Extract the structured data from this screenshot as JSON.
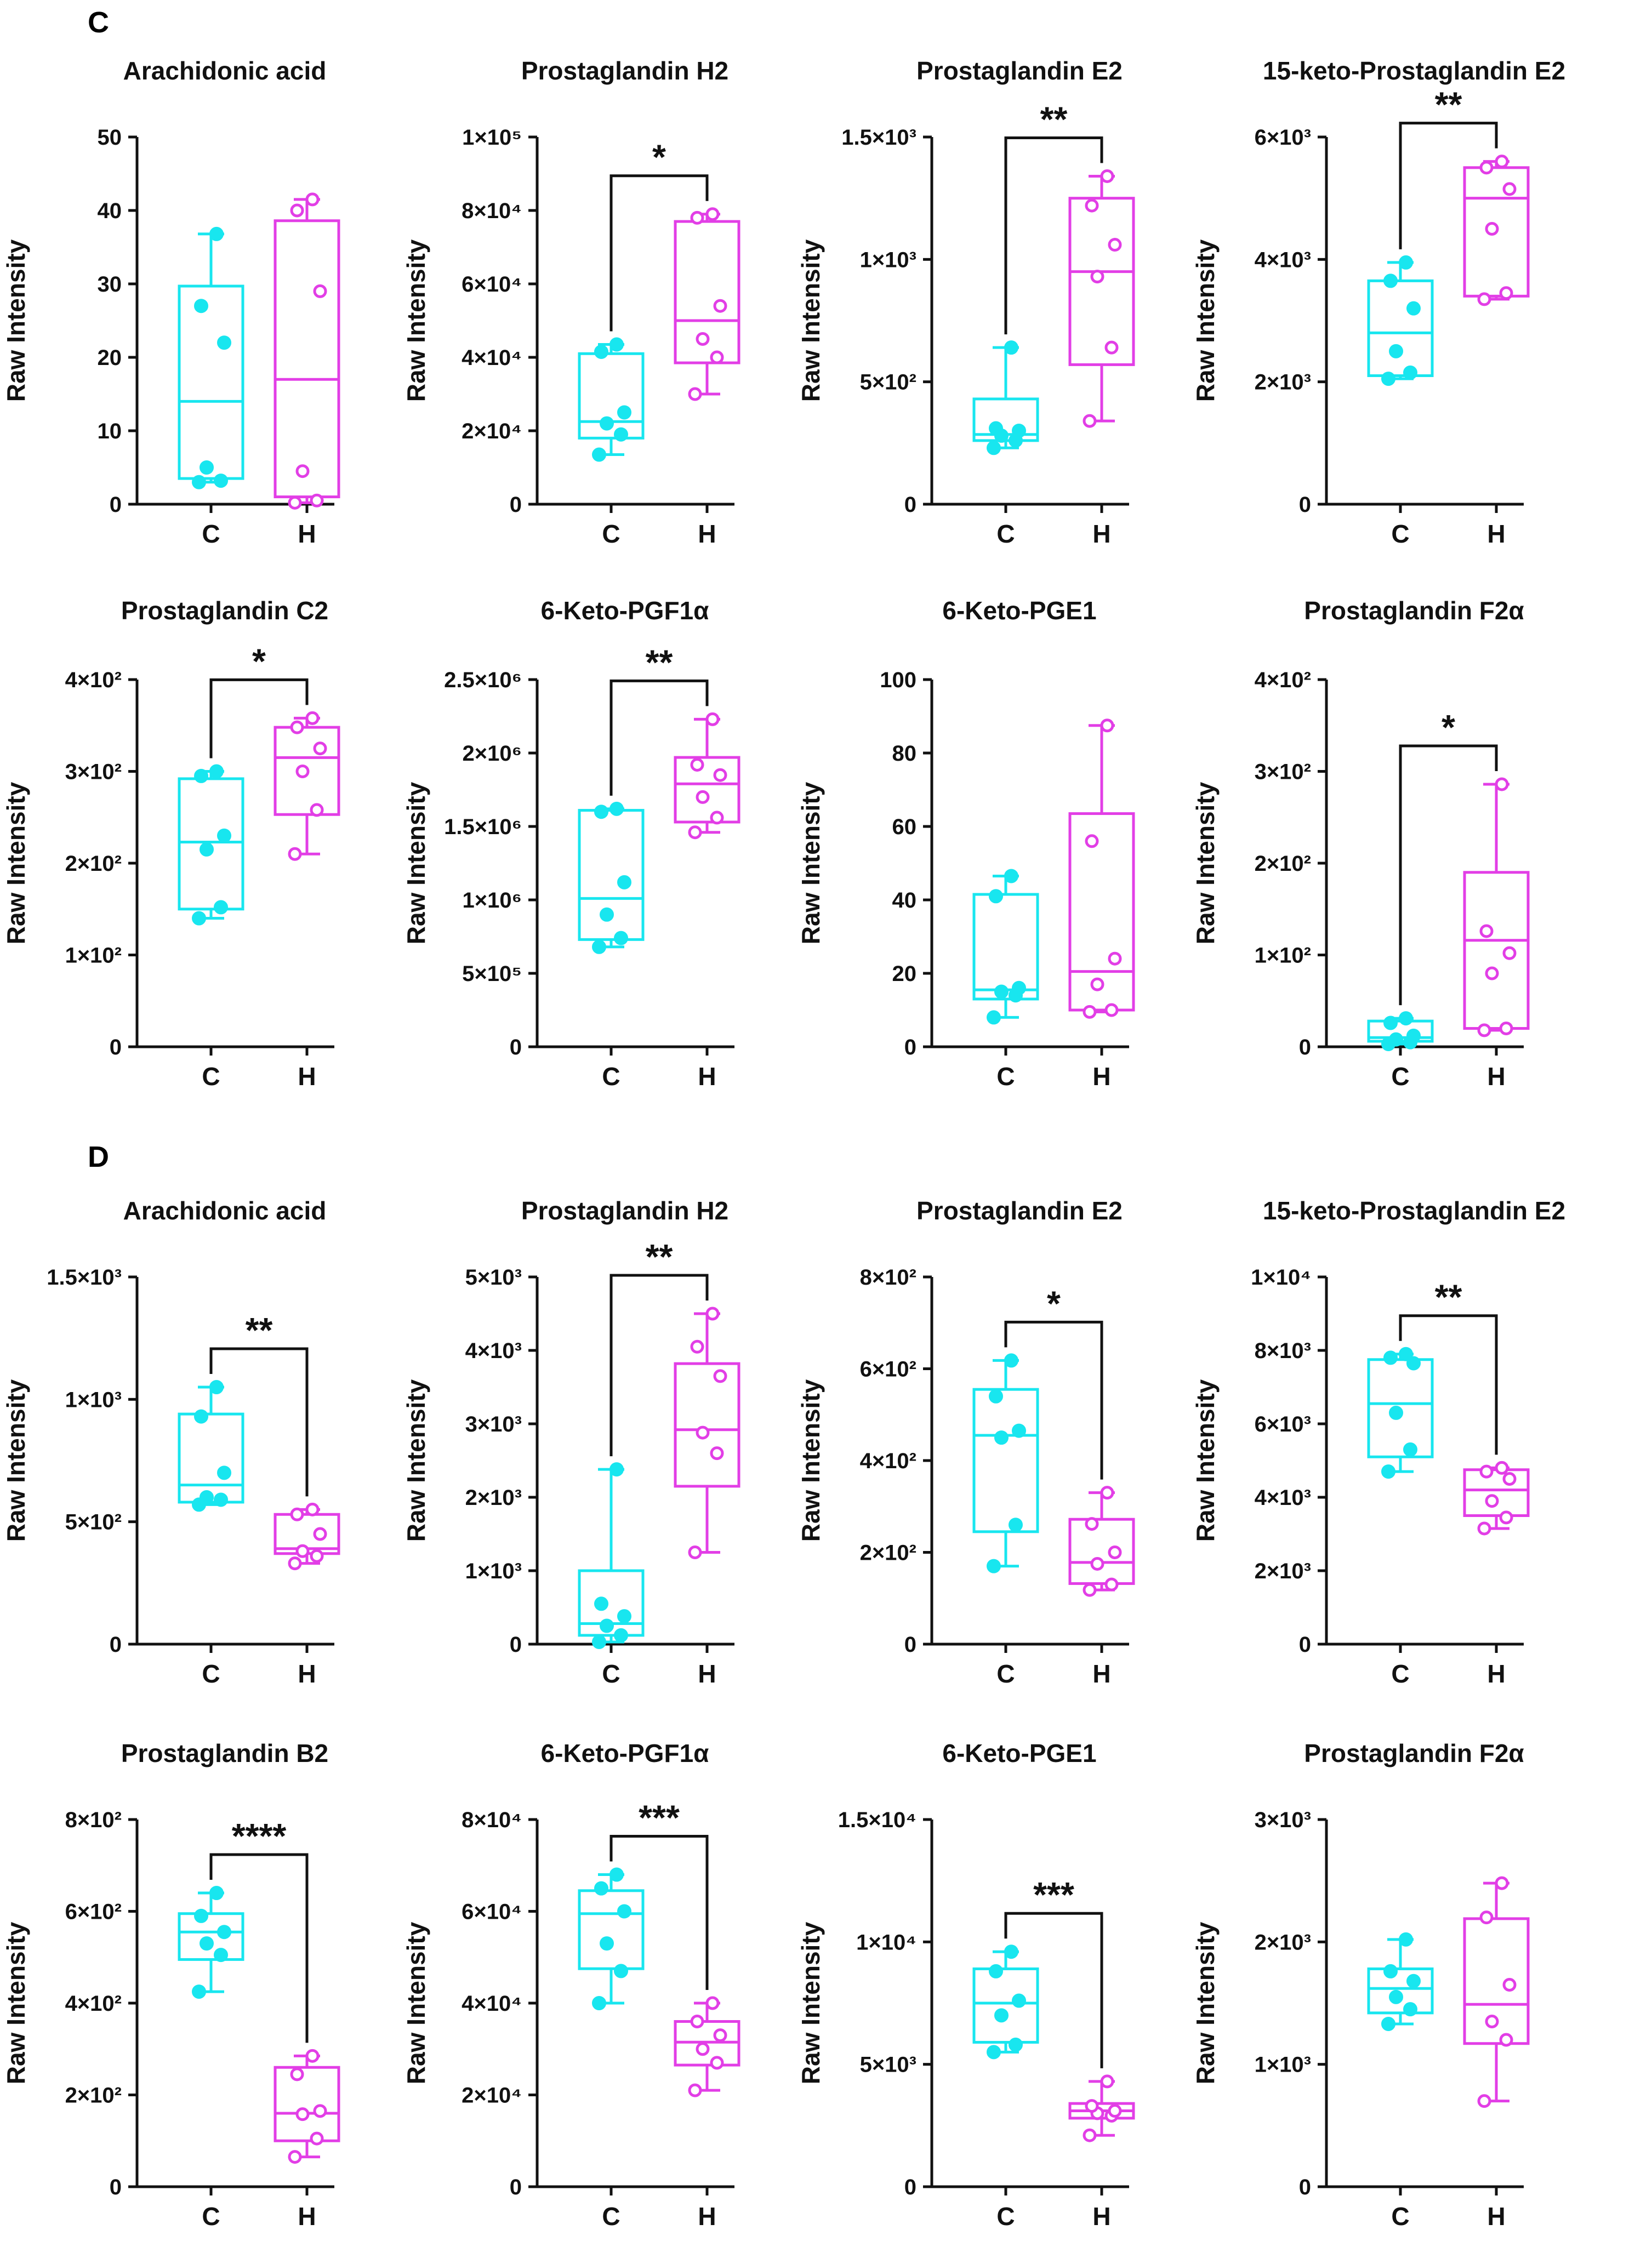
{
  "panels": [
    {
      "label": "C"
    },
    {
      "label": "D"
    }
  ],
  "colors": {
    "control": "#18e6ef",
    "treated": "#e23ee6",
    "axis": "#111111"
  },
  "chart_data": [
    {
      "panel": "C",
      "type": "box",
      "title": "Arachidonic acid",
      "ylabel": "Raw Intensity",
      "categories": [
        "C",
        "H"
      ],
      "ylim": [
        0,
        50
      ],
      "yticks": [
        0,
        10,
        20,
        30,
        40,
        50
      ],
      "ytick_labels": [
        "0",
        "10",
        "20",
        "30",
        "40",
        "50"
      ],
      "boxes": [
        {
          "group": "C",
          "min": 3,
          "q1": 3.5,
          "median": 14,
          "q3": 29.7,
          "max": 36.8,
          "points": [
            3,
            3.2,
            5,
            22,
            27,
            36.8
          ],
          "filled": true
        },
        {
          "group": "H",
          "min": 0.2,
          "q1": 1,
          "median": 17,
          "q3": 38.6,
          "max": 41.5,
          "points": [
            0.2,
            0.5,
            4.5,
            29,
            40,
            41.5
          ],
          "filled": false
        }
      ],
      "significance": ""
    },
    {
      "panel": "C",
      "type": "box",
      "title": "Prostaglandin H2",
      "ylabel": "Raw Intensity",
      "categories": [
        "C",
        "H"
      ],
      "ylim": [
        0,
        100000
      ],
      "yticks": [
        0,
        20000,
        40000,
        60000,
        80000,
        100000
      ],
      "ytick_labels": [
        "0",
        "2×10⁴",
        "4×10⁴",
        "6×10⁴",
        "8×10⁴",
        "1×10⁵"
      ],
      "boxes": [
        {
          "group": "C",
          "min": 13500,
          "q1": 18000,
          "median": 22500,
          "q3": 41000,
          "max": 43500,
          "points": [
            13500,
            19000,
            22000,
            25000,
            41500,
            43500
          ],
          "filled": true
        },
        {
          "group": "H",
          "min": 30000,
          "q1": 38500,
          "median": 50000,
          "q3": 77000,
          "max": 79000,
          "points": [
            30000,
            40000,
            45000,
            54000,
            78000,
            79000
          ],
          "filled": false
        }
      ],
      "significance": "*"
    },
    {
      "panel": "C",
      "type": "box",
      "title": "Prostaglandin E2",
      "ylabel": "Raw Intensity",
      "categories": [
        "C",
        "H"
      ],
      "ylim": [
        0,
        1500
      ],
      "yticks": [
        0,
        500,
        1000,
        1500
      ],
      "ytick_labels": [
        "0",
        "5×10²",
        "1×10³",
        "1.5×10³"
      ],
      "boxes": [
        {
          "group": "C",
          "min": 230,
          "q1": 260,
          "median": 285,
          "q3": 430,
          "max": 640,
          "points": [
            230,
            260,
            280,
            300,
            310,
            640
          ],
          "filled": true
        },
        {
          "group": "H",
          "min": 340,
          "q1": 570,
          "median": 950,
          "q3": 1250,
          "max": 1340,
          "points": [
            340,
            640,
            930,
            1060,
            1220,
            1340
          ],
          "filled": false
        }
      ],
      "significance": "**"
    },
    {
      "panel": "C",
      "type": "box",
      "title": "15-keto-Prostaglandin E2",
      "ylabel": "Raw Intensity",
      "categories": [
        "C",
        "H"
      ],
      "ylim": [
        0,
        6000
      ],
      "yticks": [
        0,
        2000,
        4000,
        6000
      ],
      "ytick_labels": [
        "0",
        "2×10³",
        "4×10³",
        "6×10³"
      ],
      "boxes": [
        {
          "group": "C",
          "min": 2050,
          "q1": 2100,
          "median": 2800,
          "q3": 3650,
          "max": 3950,
          "points": [
            2050,
            2150,
            2500,
            3200,
            3650,
            3950
          ],
          "filled": true
        },
        {
          "group": "H",
          "min": 3350,
          "q1": 3400,
          "median": 5000,
          "q3": 5500,
          "max": 5600,
          "points": [
            3350,
            3450,
            4500,
            5150,
            5500,
            5600
          ],
          "filled": false
        }
      ],
      "significance": "**"
    },
    {
      "panel": "C",
      "type": "box",
      "title": "Prostaglandin C2",
      "ylabel": "Raw Intensity",
      "categories": [
        "C",
        "H"
      ],
      "ylim": [
        0,
        400
      ],
      "yticks": [
        0,
        100,
        200,
        300,
        400
      ],
      "ytick_labels": [
        "0",
        "1×10²",
        "2×10²",
        "3×10²",
        "4×10²"
      ],
      "boxes": [
        {
          "group": "C",
          "min": 140,
          "q1": 150,
          "median": 223,
          "q3": 292,
          "max": 300,
          "points": [
            140,
            152,
            215,
            230,
            295,
            300
          ],
          "filled": true
        },
        {
          "group": "H",
          "min": 210,
          "q1": 253,
          "median": 315,
          "q3": 348,
          "max": 358,
          "points": [
            210,
            258,
            300,
            325,
            348,
            358
          ],
          "filled": false
        }
      ],
      "significance": "*"
    },
    {
      "panel": "C",
      "type": "box",
      "title": "6-Keto-PGF1α",
      "ylabel": "Raw Intensity",
      "categories": [
        "C",
        "H"
      ],
      "ylim": [
        0,
        2500000
      ],
      "yticks": [
        0,
        500000,
        1000000,
        1500000,
        2000000,
        2500000
      ],
      "ytick_labels": [
        "0",
        "5×10⁵",
        "1×10⁶",
        "1.5×10⁶",
        "2×10⁶",
        "2.5×10⁶"
      ],
      "boxes": [
        {
          "group": "C",
          "min": 680000,
          "q1": 730000,
          "median": 1010000,
          "q3": 1610000,
          "max": 1620000,
          "points": [
            680000,
            740000,
            900000,
            1120000,
            1600000,
            1620000
          ],
          "filled": true
        },
        {
          "group": "H",
          "min": 1460000,
          "q1": 1530000,
          "median": 1790000,
          "q3": 1970000,
          "max": 2230000,
          "points": [
            1460000,
            1560000,
            1700000,
            1850000,
            1920000,
            2230000
          ],
          "filled": false
        }
      ],
      "significance": "**"
    },
    {
      "panel": "C",
      "type": "box",
      "title": "6-Keto-PGE1",
      "ylabel": "Raw Intensity",
      "categories": [
        "C",
        "H"
      ],
      "ylim": [
        0,
        100
      ],
      "yticks": [
        0,
        20,
        40,
        60,
        80,
        100
      ],
      "ytick_labels": [
        "0",
        "20",
        "40",
        "60",
        "80",
        "100"
      ],
      "boxes": [
        {
          "group": "C",
          "min": 8,
          "q1": 13,
          "median": 15.5,
          "q3": 41.5,
          "max": 46.5,
          "points": [
            8,
            14,
            15,
            16,
            41,
            46.5
          ],
          "filled": true
        },
        {
          "group": "H",
          "min": 9.5,
          "q1": 10,
          "median": 20.5,
          "q3": 63.5,
          "max": 87.5,
          "points": [
            9.5,
            10,
            17,
            24,
            56,
            87.5
          ],
          "filled": false
        }
      ],
      "significance": ""
    },
    {
      "panel": "C",
      "type": "box",
      "title": "Prostaglandin F2α",
      "ylabel": "Raw Intensity",
      "categories": [
        "C",
        "H"
      ],
      "ylim": [
        0,
        400
      ],
      "yticks": [
        0,
        100,
        200,
        300,
        400
      ],
      "ytick_labels": [
        "0",
        "1×10²",
        "2×10²",
        "3×10²",
        "4×10²"
      ],
      "boxes": [
        {
          "group": "C",
          "min": 3,
          "q1": 6,
          "median": 10,
          "q3": 28,
          "max": 31,
          "points": [
            3,
            5,
            8,
            12,
            26,
            31
          ],
          "filled": true
        },
        {
          "group": "H",
          "min": 18,
          "q1": 20,
          "median": 116,
          "q3": 190,
          "max": 286,
          "points": [
            18,
            20,
            80,
            102,
            126,
            286
          ],
          "filled": false
        }
      ],
      "significance": "*"
    },
    {
      "panel": "D",
      "type": "box",
      "title": "Arachidonic acid",
      "ylabel": "Raw Intensity",
      "categories": [
        "C",
        "H"
      ],
      "ylim": [
        0,
        1500
      ],
      "yticks": [
        0,
        500,
        1000,
        1500
      ],
      "ytick_labels": [
        "0",
        "5×10²",
        "1×10³",
        "1.5×10³"
      ],
      "boxes": [
        {
          "group": "C",
          "min": 570,
          "q1": 580,
          "median": 650,
          "q3": 940,
          "max": 1050,
          "points": [
            570,
            590,
            600,
            700,
            930,
            1050
          ],
          "filled": true
        },
        {
          "group": "H",
          "min": 330,
          "q1": 370,
          "median": 390,
          "q3": 530,
          "max": 550,
          "points": [
            330,
            360,
            380,
            450,
            530,
            550
          ],
          "filled": false
        }
      ],
      "significance": "**"
    },
    {
      "panel": "D",
      "type": "box",
      "title": "Prostaglandin H2",
      "ylabel": "Raw Intensity",
      "categories": [
        "C",
        "H"
      ],
      "ylim": [
        0,
        5000
      ],
      "yticks": [
        0,
        1000,
        2000,
        3000,
        4000,
        5000
      ],
      "ytick_labels": [
        "0",
        "1×10³",
        "2×10³",
        "3×10³",
        "4×10³",
        "5×10³"
      ],
      "boxes": [
        {
          "group": "C",
          "min": 30,
          "q1": 120,
          "median": 280,
          "q3": 1000,
          "max": 2380,
          "points": [
            30,
            120,
            250,
            380,
            550,
            2380
          ],
          "filled": true
        },
        {
          "group": "H",
          "min": 1250,
          "q1": 2150,
          "median": 2920,
          "q3": 3820,
          "max": 4500,
          "points": [
            1250,
            2600,
            2880,
            3650,
            4050,
            4500
          ],
          "filled": false
        }
      ],
      "significance": "**"
    },
    {
      "panel": "D",
      "type": "box",
      "title": "Prostaglandin E2",
      "ylabel": "Raw Intensity",
      "categories": [
        "C",
        "H"
      ],
      "ylim": [
        0,
        800
      ],
      "yticks": [
        0,
        200,
        400,
        600,
        800
      ],
      "ytick_labels": [
        "0",
        "2×10²",
        "4×10²",
        "6×10²",
        "8×10²"
      ],
      "boxes": [
        {
          "group": "C",
          "min": 170,
          "q1": 245,
          "median": 455,
          "q3": 555,
          "max": 618,
          "points": [
            170,
            260,
            450,
            465,
            540,
            618
          ],
          "filled": true
        },
        {
          "group": "H",
          "min": 118,
          "q1": 132,
          "median": 178,
          "q3": 272,
          "max": 330,
          "points": [
            118,
            130,
            175,
            200,
            262,
            330
          ],
          "filled": false
        }
      ],
      "significance": "*"
    },
    {
      "panel": "D",
      "type": "box",
      "title": "15-keto-Prostaglandin E2",
      "ylabel": "Raw Intensity",
      "categories": [
        "C",
        "H"
      ],
      "ylim": [
        0,
        10000
      ],
      "yticks": [
        0,
        2000,
        4000,
        6000,
        8000,
        10000
      ],
      "ytick_labels": [
        "0",
        "2×10³",
        "4×10³",
        "6×10³",
        "8×10³",
        "1×10⁴"
      ],
      "boxes": [
        {
          "group": "C",
          "min": 4700,
          "q1": 5100,
          "median": 6550,
          "q3": 7750,
          "max": 7900,
          "points": [
            4700,
            5300,
            6300,
            7650,
            7800,
            7900
          ],
          "filled": true
        },
        {
          "group": "H",
          "min": 3150,
          "q1": 3500,
          "median": 4200,
          "q3": 4750,
          "max": 4800,
          "points": [
            3150,
            3450,
            3900,
            4500,
            4700,
            4800
          ],
          "filled": false
        }
      ],
      "significance": "**"
    },
    {
      "panel": "D",
      "type": "box",
      "title": "Prostaglandin B2",
      "ylabel": "Raw Intensity",
      "categories": [
        "C",
        "H"
      ],
      "ylim": [
        0,
        800
      ],
      "yticks": [
        0,
        200,
        400,
        600,
        800
      ],
      "ytick_labels": [
        "0",
        "2×10²",
        "4×10²",
        "6×10²",
        "8×10²"
      ],
      "boxes": [
        {
          "group": "C",
          "min": 425,
          "q1": 495,
          "median": 555,
          "q3": 595,
          "max": 640,
          "points": [
            425,
            505,
            530,
            555,
            590,
            640
          ],
          "filled": true
        },
        {
          "group": "H",
          "min": 65,
          "q1": 100,
          "median": 160,
          "q3": 260,
          "max": 285,
          "points": [
            65,
            105,
            158,
            165,
            245,
            285
          ],
          "filled": false
        }
      ],
      "significance": "****"
    },
    {
      "panel": "D",
      "type": "box",
      "title": "6-Keto-PGF1α",
      "ylabel": "Raw Intensity",
      "categories": [
        "C",
        "H"
      ],
      "ylim": [
        0,
        80000
      ],
      "yticks": [
        0,
        20000,
        40000,
        60000,
        80000
      ],
      "ytick_labels": [
        "0",
        "2×10⁴",
        "4×10⁴",
        "6×10⁴",
        "8×10⁴"
      ],
      "boxes": [
        {
          "group": "C",
          "min": 40000,
          "q1": 47500,
          "median": 59500,
          "q3": 64500,
          "max": 68000,
          "points": [
            40000,
            47000,
            53000,
            60000,
            65000,
            68000
          ],
          "filled": true
        },
        {
          "group": "H",
          "min": 21000,
          "q1": 26500,
          "median": 31500,
          "q3": 36000,
          "max": 40000,
          "points": [
            21000,
            27000,
            30000,
            33000,
            36000,
            40000
          ],
          "filled": false
        }
      ],
      "significance": "***"
    },
    {
      "panel": "D",
      "type": "box",
      "title": "6-Keto-PGE1",
      "ylabel": "Raw Intensity",
      "categories": [
        "C",
        "H"
      ],
      "ylim": [
        0,
        15000
      ],
      "yticks": [
        0,
        5000,
        10000,
        15000
      ],
      "ytick_labels": [
        "0",
        "5×10³",
        "1×10⁴",
        "1.5×10⁴"
      ],
      "boxes": [
        {
          "group": "C",
          "min": 5500,
          "q1": 5900,
          "median": 7500,
          "q3": 8900,
          "max": 9600,
          "points": [
            5500,
            5800,
            7000,
            7600,
            8800,
            9600
          ],
          "filled": true
        },
        {
          "group": "H",
          "min": 2100,
          "q1": 2800,
          "median": 3100,
          "q3": 3400,
          "max": 4300,
          "points": [
            2100,
            2900,
            3000,
            3100,
            3300,
            4300
          ],
          "filled": false
        }
      ],
      "significance": "***"
    },
    {
      "panel": "D",
      "type": "box",
      "title": "Prostaglandin F2α",
      "ylabel": "Raw Intensity",
      "categories": [
        "C",
        "H"
      ],
      "ylim": [
        0,
        3000
      ],
      "yticks": [
        0,
        1000,
        2000,
        3000
      ],
      "ytick_labels": [
        "0",
        "1×10³",
        "2×10³",
        "3×10³"
      ],
      "boxes": [
        {
          "group": "C",
          "min": 1330,
          "q1": 1420,
          "median": 1620,
          "q3": 1780,
          "max": 2020,
          "points": [
            1330,
            1450,
            1550,
            1680,
            1760,
            2020
          ],
          "filled": true
        },
        {
          "group": "H",
          "min": 700,
          "q1": 1170,
          "median": 1490,
          "q3": 2190,
          "max": 2480,
          "points": [
            700,
            1200,
            1350,
            1650,
            2200,
            2480
          ],
          "filled": false
        }
      ],
      "significance": ""
    }
  ]
}
